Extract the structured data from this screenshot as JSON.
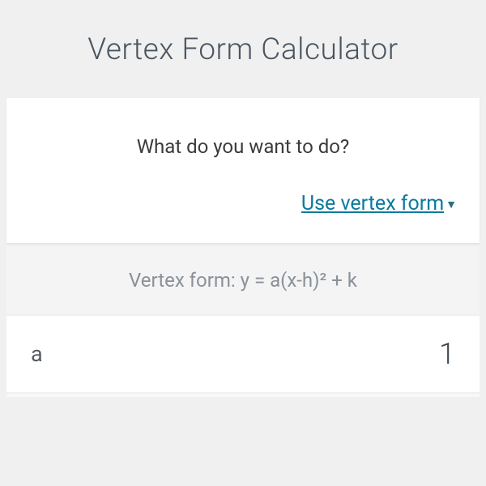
{
  "header": {
    "title": "Vertex Form Calculator"
  },
  "question": {
    "prompt": "What do you want to do?"
  },
  "dropdown": {
    "label": "Use vertex form"
  },
  "formula": {
    "label": "Vertex form: y = a(x-h)² + k"
  },
  "inputs": {
    "a": {
      "label": "a",
      "value": "1"
    }
  },
  "colors": {
    "background": "#f0f0f0",
    "card": "#ffffff",
    "title": "#4a5560",
    "text": "#3a3a3a",
    "link": "#0b7a9e",
    "formula_bg": "#f4f4f4",
    "formula_text": "#8a9199",
    "label": "#555c63",
    "value": "#3f4852"
  }
}
